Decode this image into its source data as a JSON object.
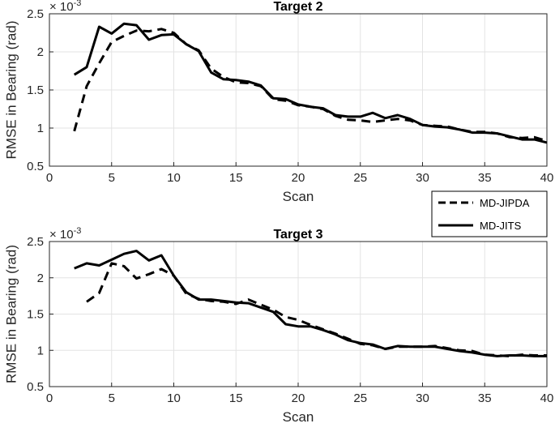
{
  "chart_data": [
    {
      "type": "line",
      "title": "Target 2",
      "xlabel": "Scan",
      "ylabel": "RMSE in Bearing (rad)",
      "y_exponent_base": "× 10",
      "y_exponent_power": "-3",
      "xlim": [
        0,
        40
      ],
      "ylim": [
        0.5,
        2.5
      ],
      "xticks": [
        "0",
        "5",
        "10",
        "15",
        "20",
        "25",
        "30",
        "35",
        "40"
      ],
      "yticks": [
        "0.5",
        "1",
        "1.5",
        "2",
        "2.5"
      ],
      "grid": true,
      "series": [
        {
          "name": "MD-JIPDA",
          "style": "dashed",
          "color": "#000000",
          "x": [
            2,
            3,
            4,
            5,
            6,
            7,
            8,
            9,
            10,
            11,
            12,
            13,
            14,
            15,
            16,
            17,
            18,
            19,
            20,
            21,
            22,
            23,
            24,
            25,
            26,
            27,
            28,
            29,
            30,
            31,
            32,
            33,
            34,
            35,
            36,
            37,
            38,
            39,
            40
          ],
          "y": [
            0.96,
            1.55,
            1.85,
            2.13,
            2.21,
            2.28,
            2.27,
            2.3,
            2.25,
            2.1,
            2.02,
            1.78,
            1.67,
            1.6,
            1.59,
            1.55,
            1.38,
            1.36,
            1.3,
            1.28,
            1.25,
            1.16,
            1.11,
            1.1,
            1.08,
            1.1,
            1.12,
            1.1,
            1.04,
            1.03,
            1.02,
            0.98,
            0.95,
            0.95,
            0.93,
            0.88,
            0.87,
            0.88,
            0.83
          ]
        },
        {
          "name": "MD-JITS",
          "style": "solid",
          "color": "#000000",
          "x": [
            2,
            3,
            4,
            5,
            6,
            7,
            8,
            9,
            10,
            11,
            12,
            13,
            14,
            15,
            16,
            17,
            18,
            19,
            20,
            21,
            22,
            23,
            24,
            25,
            26,
            27,
            28,
            29,
            30,
            31,
            32,
            33,
            34,
            35,
            36,
            37,
            38,
            39,
            40
          ],
          "y": [
            1.7,
            1.8,
            2.33,
            2.24,
            2.37,
            2.35,
            2.16,
            2.22,
            2.23,
            2.1,
            2.01,
            1.73,
            1.64,
            1.63,
            1.61,
            1.56,
            1.39,
            1.38,
            1.31,
            1.28,
            1.26,
            1.17,
            1.15,
            1.15,
            1.2,
            1.13,
            1.17,
            1.12,
            1.04,
            1.02,
            1.01,
            0.98,
            0.94,
            0.94,
            0.93,
            0.89,
            0.85,
            0.85,
            0.81
          ]
        }
      ]
    },
    {
      "type": "line",
      "title": "Target 3",
      "xlabel": "Scan",
      "ylabel": "RMSE in Bearing (rad)",
      "y_exponent_base": "× 10",
      "y_exponent_power": "-3",
      "xlim": [
        0,
        40
      ],
      "ylim": [
        0.5,
        2.5
      ],
      "xticks": [
        "0",
        "5",
        "10",
        "15",
        "20",
        "25",
        "30",
        "35",
        "40"
      ],
      "yticks": [
        "0.5",
        "1",
        "1.5",
        "2",
        "2.5"
      ],
      "grid": true,
      "series": [
        {
          "name": "MD-JIPDA",
          "style": "dashed",
          "color": "#000000",
          "x": [
            3,
            4,
            5,
            6,
            7,
            8,
            9,
            10,
            11,
            12,
            13,
            14,
            15,
            16,
            17,
            18,
            19,
            20,
            21,
            22,
            23,
            24,
            25,
            26,
            27,
            28,
            29,
            30,
            31,
            32,
            33,
            34,
            35,
            36,
            37,
            38,
            39,
            40
          ],
          "y": [
            1.67,
            1.79,
            2.2,
            2.16,
            1.99,
            2.05,
            2.12,
            2.03,
            1.78,
            1.71,
            1.68,
            1.67,
            1.64,
            1.7,
            1.63,
            1.56,
            1.46,
            1.42,
            1.35,
            1.29,
            1.23,
            1.16,
            1.09,
            1.07,
            1.02,
            1.05,
            1.05,
            1.05,
            1.06,
            1.03,
            1.0,
            0.99,
            0.94,
            0.93,
            0.92,
            0.94,
            0.93,
            0.93
          ]
        },
        {
          "name": "MD-JITS",
          "style": "solid",
          "color": "#000000",
          "x": [
            2,
            3,
            4,
            5,
            6,
            7,
            8,
            9,
            10,
            11,
            12,
            13,
            14,
            15,
            16,
            17,
            18,
            19,
            20,
            21,
            22,
            23,
            24,
            25,
            26,
            27,
            28,
            29,
            30,
            31,
            32,
            33,
            34,
            35,
            36,
            37,
            38,
            39,
            40
          ],
          "y": [
            2.13,
            2.2,
            2.17,
            2.25,
            2.33,
            2.37,
            2.24,
            2.31,
            2.03,
            1.8,
            1.7,
            1.7,
            1.68,
            1.66,
            1.65,
            1.59,
            1.53,
            1.36,
            1.33,
            1.33,
            1.28,
            1.22,
            1.14,
            1.1,
            1.08,
            1.02,
            1.06,
            1.05,
            1.05,
            1.05,
            1.02,
            0.99,
            0.97,
            0.94,
            0.92,
            0.93,
            0.93,
            0.92,
            0.92
          ]
        }
      ]
    }
  ],
  "legend": {
    "placement": "right, between the two plots",
    "entries": [
      {
        "label": "MD-JIPDA",
        "style": "dashed"
      },
      {
        "label": "MD-JITS",
        "style": "solid"
      }
    ]
  }
}
